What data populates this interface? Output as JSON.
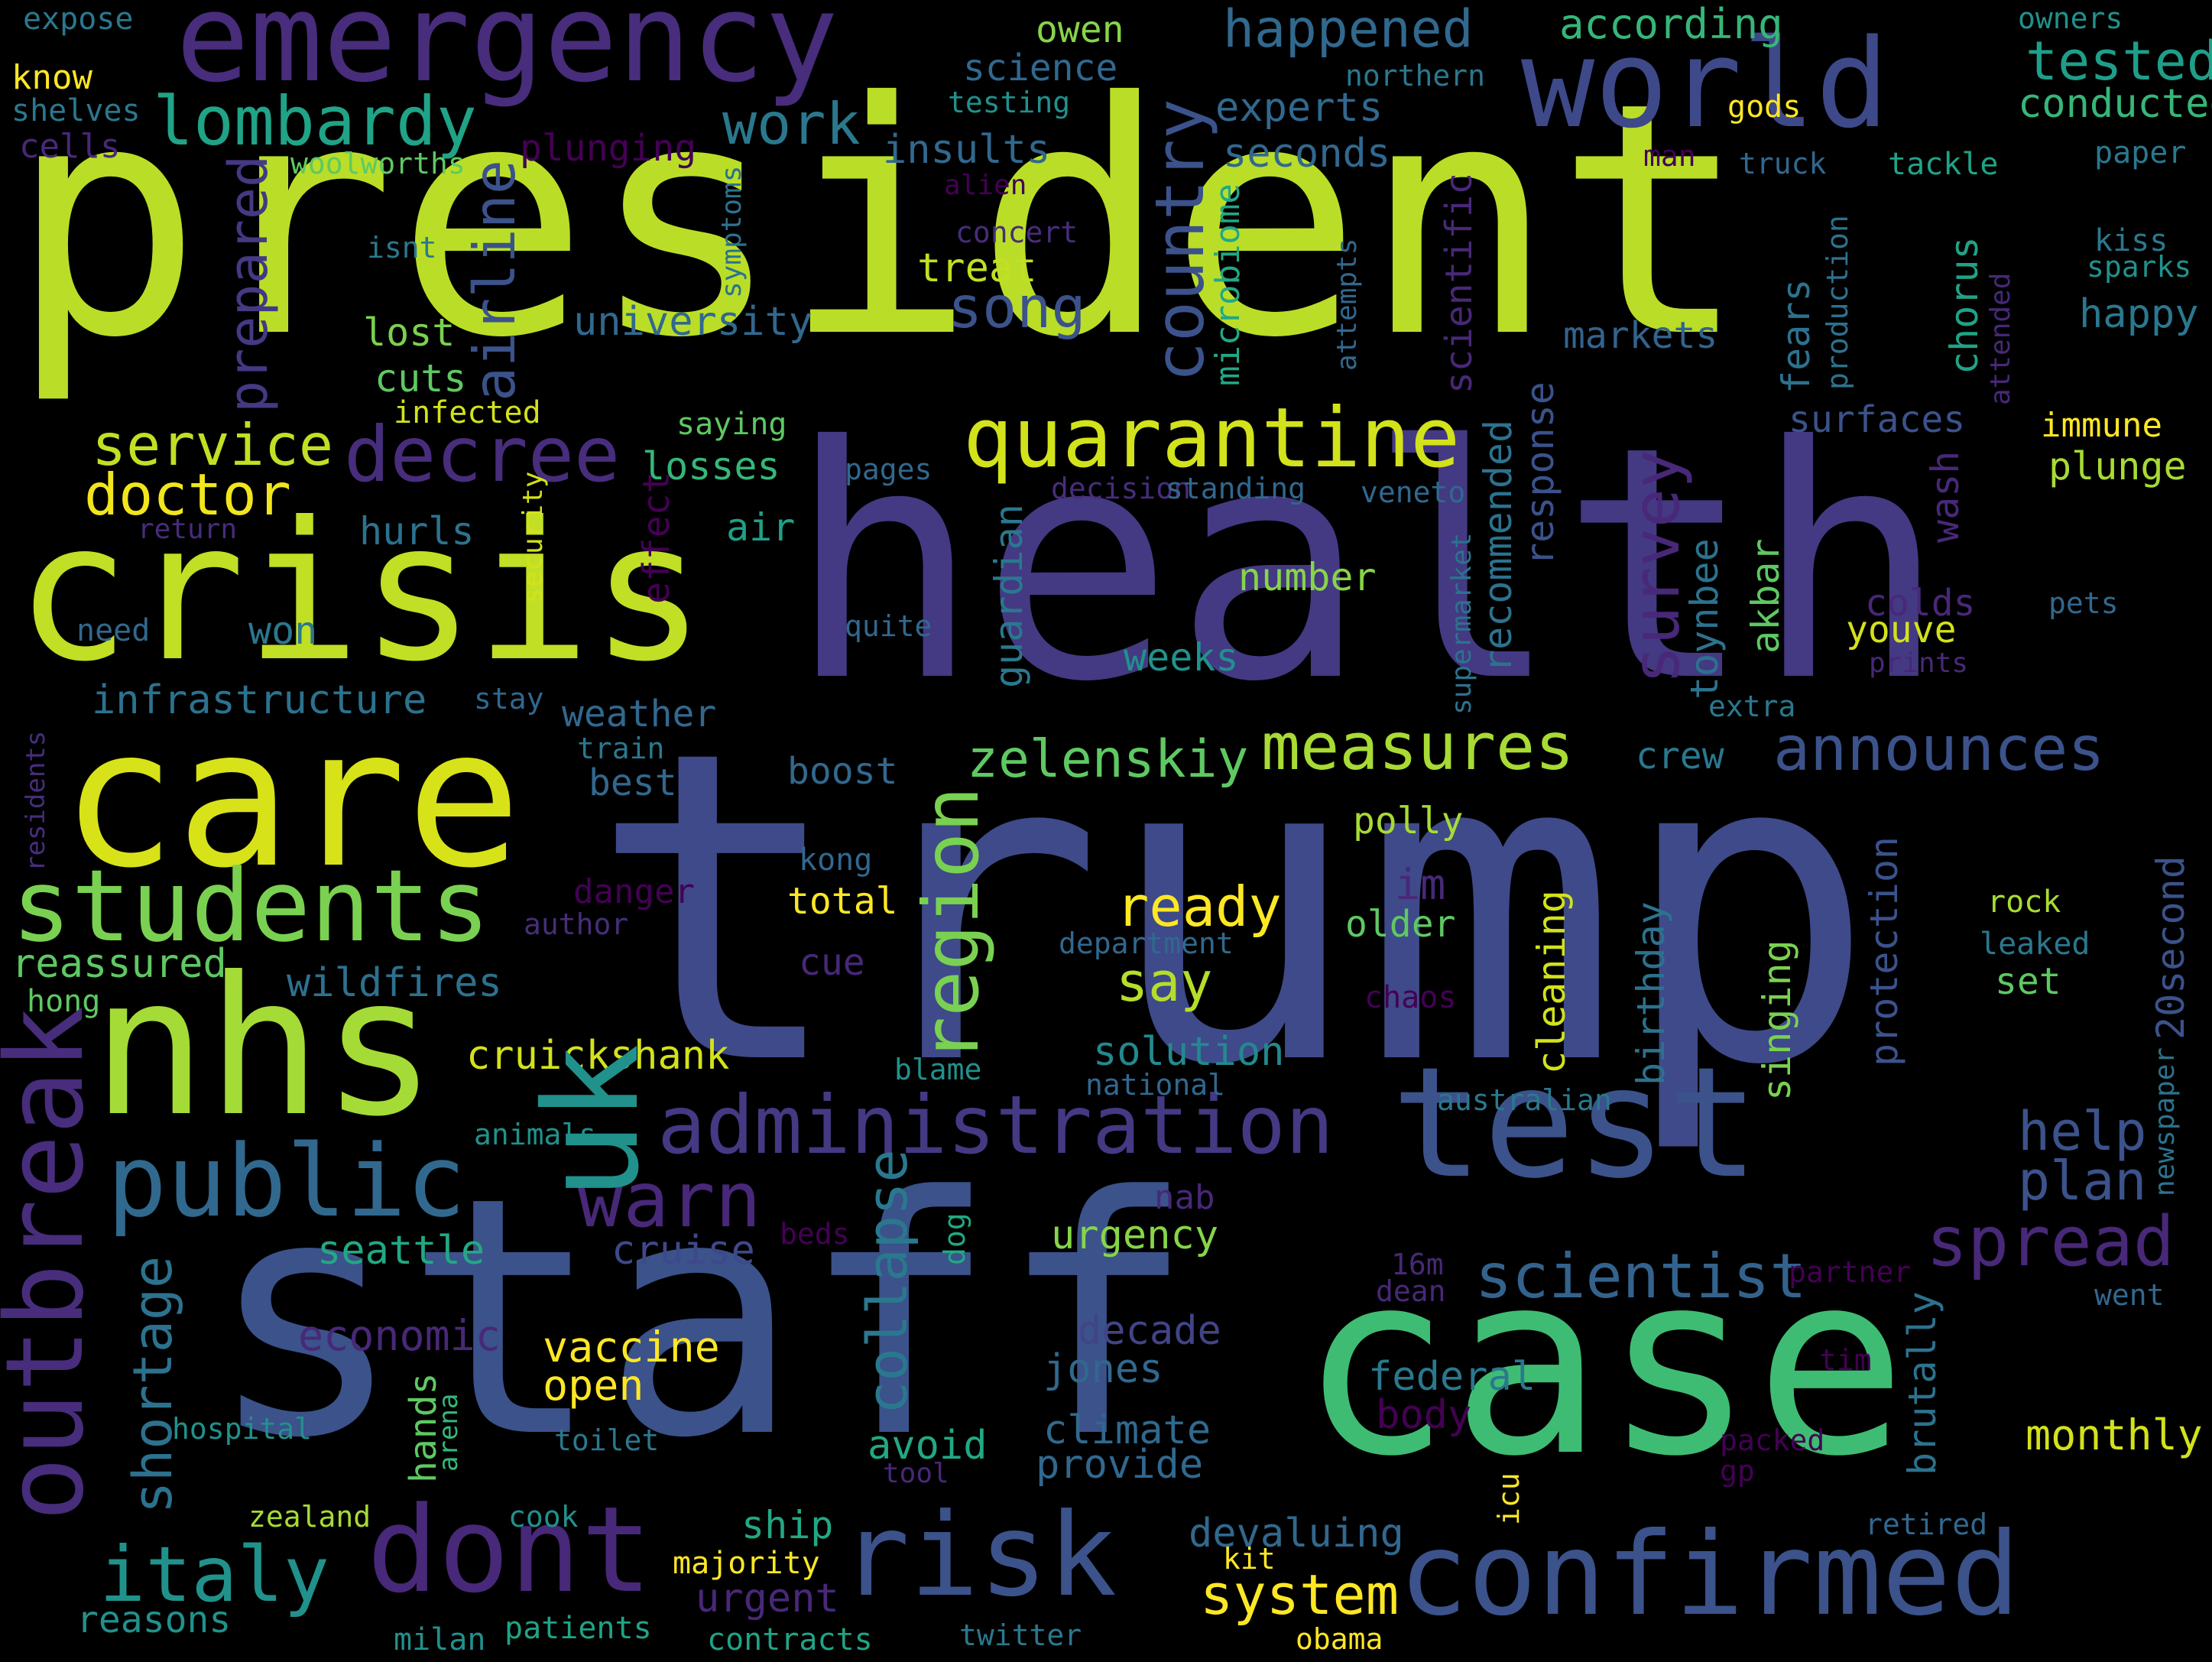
{
  "words": {
    "president": "president",
    "health": "health",
    "trump": "trump",
    "staff": "staff",
    "case": "case",
    "crisis": "crisis",
    "care": "care",
    "nhs": "nhs",
    "uk": "uk",
    "test": "test",
    "emergency": "emergency",
    "world": "world",
    "students": "students",
    "public": "public",
    "dont": "dont",
    "risk": "risk",
    "confirmed": "confirmed",
    "outbreak": "outbreak",
    "administration": "administration",
    "quarantine": "quarantine",
    "decree": "decree",
    "lombardy": "lombardy",
    "country": "country",
    "measures": "measures",
    "announces": "announces",
    "region": "region",
    "italy": "italy",
    "warn": "warn",
    "spread": "spread",
    "scientist": "scientist",
    "zelenskiy": "zelenskiy",
    "system": "system",
    "survey": "survey",
    "airline": "airline",
    "happened": "happened",
    "tested": "tested",
    "conducted": "conducted",
    "according": "according",
    "song": "song",
    "work": "work",
    "service": "service",
    "doctor": "doctor",
    "prepared": "prepared",
    "shortage": "shortage",
    "collapse": "collapse",
    "ready": "ready",
    "say": "say",
    "help": "help",
    "plan": "plan",
    "economic": "economic",
    "vaccine": "vaccine",
    "open": "open",
    "infrastructure": "infrastructure",
    "reassured": "reassured",
    "wildfires": "wildfires",
    "cruickshank": "cruickshank",
    "seattle": "seattle",
    "cruise": "cruise",
    "urgency": "urgency",
    "solution": "solution",
    "decade": "decade",
    "jones": "jones",
    "federal": "federal",
    "climate": "climate",
    "provide": "provide",
    "avoid": "avoid",
    "monthly": "monthly",
    "devaluing": "devaluing",
    "ship": "ship",
    "urgent": "urgent",
    "reasons": "reasons",
    "majority": "majority",
    "kit": "kit",
    "owen": "owen",
    "science": "science",
    "experts": "experts",
    "seconds": "seconds",
    "insults": "insults",
    "university": "university",
    "treat": "treat",
    "lost": "lost",
    "cuts": "cuts",
    "infected": "infected",
    "losses": "losses",
    "saying": "saying",
    "air": "air",
    "hurls": "hurls",
    "won": "won",
    "number": "number",
    "weeks": "weeks",
    "weather": "weather",
    "best": "best",
    "boost": "boost",
    "crew": "crew",
    "polly": "polly",
    "im": "im",
    "older": "older",
    "total": "total",
    "danger": "danger",
    "cue": "cue",
    "set": "set",
    "rock": "rock",
    "leaked": "leaked",
    "nab": "nab",
    "body": "body",
    "markets": "markets",
    "fears": "fears",
    "chorus": "chorus",
    "happy": "happy",
    "surfaces": "surfaces",
    "immune": "immune",
    "plunge": "plunge",
    "wash": "wash",
    "colds": "colds",
    "youve": "youve",
    "akbar": "akbar",
    "toynbee": "toynbee",
    "response": "response",
    "recommended": "recommended",
    "guardian": "guardian",
    "scientific": "scientific",
    "microbiome": "microbiome",
    "effect": "effect",
    "cleaning": "cleaning",
    "birthday": "birthday",
    "singing": "singing",
    "protection": "protection",
    "20second": "20second",
    "brutally": "brutally",
    "hands": "hands",
    "expose": "expose",
    "know": "know",
    "shelves": "shelves",
    "cells": "cells",
    "woolworths": "woolworths",
    "plunging": "plunging",
    "testing": "testing",
    "northern": "northern",
    "gods": "gods",
    "owners": "owners",
    "man": "man",
    "truck": "truck",
    "tackle": "tackle",
    "paper": "paper",
    "alien": "alien",
    "concert": "concert",
    "kiss": "kiss",
    "sparks": "sparks",
    "isnt": "isnt",
    "symptoms": "symptoms",
    "attempts": "attempts",
    "production": "production",
    "attended": "attended",
    "pages": "pages",
    "decision": "decision",
    "standing": "standing",
    "veneto": "veneto",
    "return": "return",
    "security": "security",
    "need": "need",
    "quite": "quite",
    "pets": "pets",
    "prints": "prints",
    "supermarket": "supermarket",
    "stay": "stay",
    "extra": "extra",
    "train": "train",
    "residents": "residents",
    "kong": "kong",
    "author": "author",
    "department": "department",
    "hong": "hong",
    "chaos": "chaos",
    "blame": "blame",
    "national": "national",
    "australian": "australian",
    "animals": "animals",
    "newspaper": "newspaper",
    "beds": "beds",
    "dog": "dog",
    "16m": "16m",
    "dean": "dean",
    "partner": "partner",
    "went": "went",
    "arena": "arena",
    "hospital": "hospital",
    "toilet": "toilet",
    "tool": "tool",
    "packed": "packed",
    "gp": "gp",
    "tim": "tim",
    "icu": "icu",
    "zealand": "zealand",
    "cook": "cook",
    "retired": "retired",
    "milan": "milan",
    "patients": "patients",
    "contracts": "contracts",
    "twitter": "twitter",
    "obama": "obama"
  },
  "colors": {
    "lime": "#bade28",
    "yellowgreen": "#d2e21b",
    "yellow": "#fde725",
    "green": "#5ec962",
    "teal": "#21918c",
    "steel": "#31688e",
    "indigo": "#3b528b",
    "purple": "#482878",
    "deep": "#440154",
    "dark": "#472d7b"
  }
}
